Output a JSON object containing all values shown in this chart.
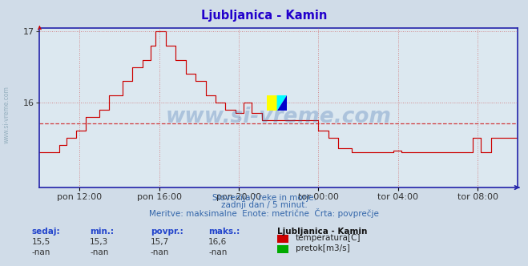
{
  "title": "Ljubljanica - Kamin",
  "bg_color": "#d0dce8",
  "plot_bg_color": "#dce8f0",
  "line_color": "#cc0000",
  "avg_line_color": "#cc0000",
  "avg_value": 15.7,
  "y_min": 14.8,
  "y_max": 17.05,
  "y_ticks": [
    16,
    17
  ],
  "x_tick_labels": [
    "pon 12:00",
    "pon 16:00",
    "pon 20:00",
    "tor 00:00",
    "tor 04:00",
    "tor 08:00"
  ],
  "x_tick_positions": [
    24,
    72,
    120,
    168,
    216,
    264
  ],
  "grid_color": "#cc4444",
  "axis_color": "#2222aa",
  "subtitle1": "Slovenija / reke in morje.",
  "subtitle2": "zadnji dan / 5 minut.",
  "subtitle3": "Meritve: maksimalne  Enote: metrične  Črta: povprečje",
  "footer_color": "#3366aa",
  "stat_label_color": "#2244cc",
  "sedaj": "15,5",
  "min_val": "15,3",
  "povpr": "15,7",
  "maks": "16,6",
  "sedaj2": "-nan",
  "min_val2": "-nan",
  "povpr2": "-nan",
  "maks2": "-nan",
  "legend_title": "Ljubljanica - Kamin",
  "legend_label1": "temperatura[C]",
  "legend_color1": "#cc0000",
  "legend_label2": "pretok[m3/s]",
  "legend_color2": "#00aa00",
  "watermark": "www.si-vreme.com",
  "watermark_color": "#3366aa",
  "watermark_alpha": 0.28,
  "n_points": 289
}
